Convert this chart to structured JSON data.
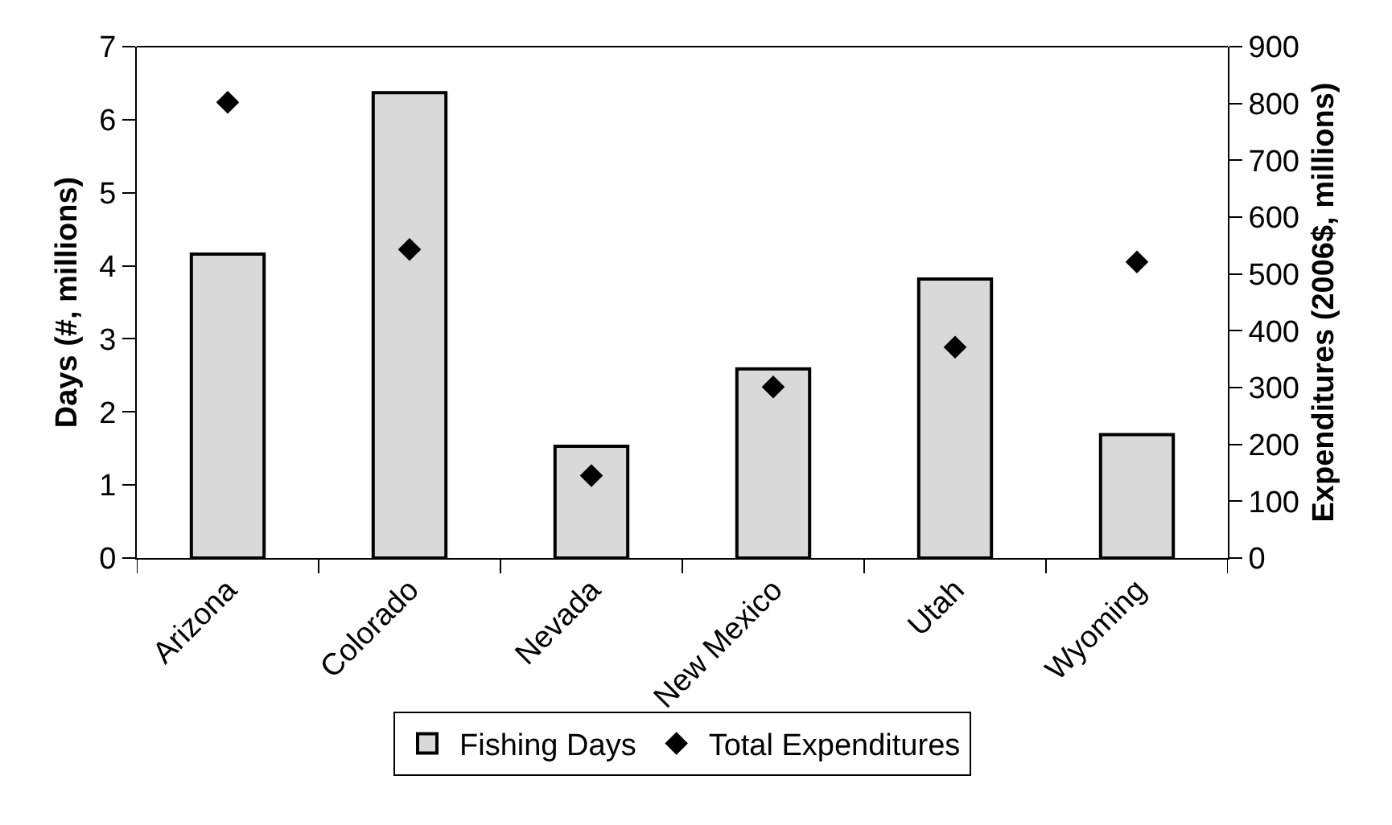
{
  "chart_data": {
    "type": "bar",
    "ylabel": "Days (#, millions)",
    "y2label": "Expenditures (2006$, millions)",
    "categories": [
      "Arizona",
      "Colorado",
      "Nevada",
      "New Mexico",
      "Utah",
      "Wyoming"
    ],
    "series": [
      {
        "name": "Fishing Days",
        "color": "#d9d9d9",
        "values": [
          4.16,
          6.37,
          1.53,
          2.59,
          3.82,
          1.69
        ]
      },
      {
        "name": "Total Expenditures",
        "type": "scatter",
        "axis": "y2",
        "color": "#000000",
        "marker": "diamond",
        "values": [
          802,
          543,
          145,
          301,
          371,
          521
        ]
      }
    ],
    "ylim": [
      0,
      7
    ],
    "yticks": [
      0,
      1,
      2,
      3,
      4,
      5,
      6,
      7
    ],
    "y2lim": [
      0,
      900
    ],
    "y2ticks": [
      0,
      100,
      200,
      300,
      400,
      500,
      600,
      700,
      800,
      900
    ],
    "grid": false,
    "legend": "bottom"
  }
}
